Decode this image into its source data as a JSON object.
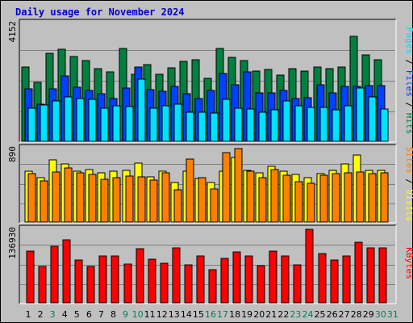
{
  "chart_data": [
    {
      "type": "bar",
      "title": "Daily usage for November 2024",
      "categories": [
        "1",
        "2",
        "3",
        "4",
        "5",
        "6",
        "7",
        "8",
        "9",
        "10",
        "11",
        "12",
        "13",
        "14",
        "15",
        "16",
        "17",
        "18",
        "19",
        "20",
        "21",
        "22",
        "23",
        "24",
        "25",
        "26",
        "27",
        "28",
        "29",
        "30",
        "31"
      ],
      "weekend_days": [
        "3",
        "9",
        "10",
        "16",
        "17",
        "23",
        "24",
        "30",
        "31"
      ],
      "ymax_label": "4152",
      "ymax": 4152,
      "ylabel_parts": [
        "Pages",
        "Files",
        "Hits"
      ],
      "series": [
        {
          "name": "Hits",
          "values": [
            2630,
            2080,
            3090,
            3240,
            3000,
            2830,
            2550,
            2450,
            3270,
            2360,
            2700,
            2360,
            2600,
            2820,
            2880,
            2220,
            3280,
            2960,
            2840,
            2480,
            2540,
            2340,
            2550,
            2470,
            2620,
            2560,
            2630,
            3710,
            3030,
            2860,
            0
          ]
        },
        {
          "name": "Files",
          "values": [
            1860,
            1310,
            1860,
            2300,
            1900,
            1800,
            1680,
            1510,
            1890,
            2620,
            1820,
            1770,
            1930,
            1690,
            1500,
            1780,
            2380,
            2000,
            2440,
            1710,
            1720,
            1800,
            1510,
            1530,
            1990,
            1700,
            1940,
            1940,
            1950,
            1970,
            0
          ]
        },
        {
          "name": "Pages",
          "values": [
            1180,
            1290,
            1420,
            1560,
            1500,
            1490,
            1180,
            1250,
            1220,
            2190,
            1180,
            1260,
            1300,
            1030,
            1020,
            1000,
            1470,
            1160,
            1140,
            1010,
            1100,
            1420,
            1240,
            1200,
            1200,
            1100,
            1240,
            1890,
            1550,
            1150,
            0
          ]
        }
      ]
    },
    {
      "type": "bar",
      "ymax_label": "890",
      "ymax": 890,
      "ylabel_parts": [
        "Sites",
        "Visits"
      ],
      "series": [
        {
          "name": "Visits",
          "values": [
            620,
            540,
            750,
            700,
            620,
            640,
            600,
            620,
            630,
            710,
            550,
            620,
            480,
            620,
            530,
            480,
            620,
            780,
            630,
            600,
            670,
            620,
            580,
            540,
            590,
            630,
            700,
            810,
            630,
            630,
            0
          ]
        },
        {
          "name": "Sites",
          "values": [
            590,
            500,
            610,
            660,
            600,
            580,
            520,
            540,
            560,
            550,
            510,
            600,
            390,
            760,
            540,
            400,
            840,
            890,
            620,
            540,
            640,
            570,
            490,
            470,
            570,
            590,
            600,
            610,
            590,
            600,
            0
          ]
        }
      ]
    },
    {
      "type": "bar",
      "ymax_label": "136930",
      "ymax": 136930,
      "ylabel_parts": [
        "KBytes"
      ],
      "series": [
        {
          "name": "KBytes",
          "values": [
            96000,
            68000,
            106000,
            117000,
            80000,
            67000,
            88000,
            88000,
            72000,
            101000,
            81000,
            74000,
            102000,
            71000,
            87000,
            61000,
            83000,
            95000,
            88000,
            69000,
            96000,
            87000,
            71000,
            136930,
            92000,
            79000,
            87000,
            113000,
            103000,
            102000,
            0
          ]
        }
      ]
    }
  ],
  "colors": {
    "hits": "#008040",
    "files": "#0040ff",
    "pages": "#00e0ff",
    "visits": "#ffff00",
    "sites": "#ff8000",
    "kbytes": "#ff0000",
    "weekday_label": "#000000",
    "weekend_label": "#00805c",
    "title": "#0000cc"
  }
}
